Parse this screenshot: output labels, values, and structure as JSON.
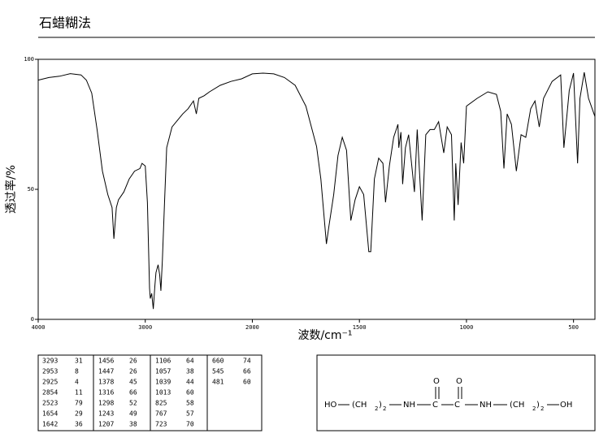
{
  "chart_data": {
    "type": "line",
    "title": "石蜡糊法",
    "x_label": "波数/cm⁻¹",
    "y_label": "透过率/%",
    "xlim": [
      4000,
      400
    ],
    "x_scale_break": 2000,
    "ylim": [
      0,
      100
    ],
    "xticks": [
      4000,
      3000,
      2000,
      1500,
      1000,
      500
    ],
    "yticks": [
      0,
      50,
      100
    ],
    "series": [
      {
        "color": "#000000",
        "x": [
          4000,
          3900,
          3800,
          3700,
          3600,
          3550,
          3500,
          3450,
          3400,
          3350,
          3310,
          3293,
          3270,
          3250,
          3200,
          3150,
          3100,
          3050,
          3030,
          3000,
          2980,
          2960,
          2953,
          2940,
          2925,
          2910,
          2900,
          2880,
          2865,
          2854,
          2840,
          2820,
          2800,
          2750,
          2700,
          2650,
          2600,
          2550,
          2523,
          2500,
          2450,
          2400,
          2300,
          2200,
          2100,
          2000,
          1950,
          1900,
          1850,
          1800,
          1750,
          1700,
          1680,
          1654,
          1642,
          1620,
          1600,
          1580,
          1560,
          1540,
          1520,
          1500,
          1480,
          1456,
          1447,
          1430,
          1410,
          1390,
          1378,
          1360,
          1340,
          1320,
          1316,
          1306,
          1298,
          1285,
          1270,
          1243,
          1230,
          1207,
          1190,
          1170,
          1150,
          1130,
          1106,
          1090,
          1070,
          1057,
          1050,
          1039,
          1025,
          1013,
          1000,
          950,
          900,
          860,
          840,
          825,
          810,
          790,
          767,
          745,
          723,
          700,
          680,
          660,
          640,
          600,
          560,
          545,
          520,
          500,
          481,
          470,
          450,
          430,
          400
        ],
        "values": [
          92,
          93,
          93.5,
          94.5,
          94,
          92,
          87,
          73,
          57,
          48,
          43,
          31,
          43,
          46,
          49,
          54,
          57,
          58,
          60,
          59,
          45,
          12,
          8,
          10,
          4,
          13,
          18,
          21,
          17,
          11,
          23,
          45,
          66,
          74,
          76.5,
          79,
          81,
          84,
          79,
          85,
          86,
          87.5,
          90,
          91.5,
          92.5,
          94.4,
          94.7,
          94.4,
          93,
          90,
          82,
          66.5,
          54,
          29,
          36,
          48,
          63,
          70,
          65,
          38,
          46,
          51,
          48,
          26,
          26,
          54,
          62,
          60,
          45,
          59,
          70,
          75,
          66,
          72,
          52,
          66,
          71,
          49,
          73,
          38,
          71,
          73,
          73,
          76,
          64,
          74,
          71,
          38,
          60,
          44,
          68,
          60,
          82,
          85,
          87.5,
          86.5,
          80,
          58,
          79,
          75,
          57,
          71,
          70,
          81,
          84,
          74,
          85,
          91.5,
          94,
          66,
          88,
          94.7,
          60,
          85,
          95,
          85,
          78
        ]
      }
    ]
  },
  "peak_table": {
    "columns": [
      [
        [
          "3293",
          "31"
        ],
        [
          "2953",
          "8"
        ],
        [
          "2925",
          "4"
        ],
        [
          "2854",
          "11"
        ],
        [
          "2523",
          "79"
        ],
        [
          "1654",
          "29"
        ],
        [
          "1642",
          "36"
        ]
      ],
      [
        [
          "1456",
          "26"
        ],
        [
          "1447",
          "26"
        ],
        [
          "1378",
          "45"
        ],
        [
          "1316",
          "66"
        ],
        [
          "1298",
          "52"
        ],
        [
          "1243",
          "49"
        ],
        [
          "1207",
          "38"
        ]
      ],
      [
        [
          "1106",
          "64"
        ],
        [
          "1057",
          "38"
        ],
        [
          "1039",
          "44"
        ],
        [
          "1013",
          "60"
        ],
        [
          "825",
          "58"
        ],
        [
          "767",
          "57"
        ],
        [
          "723",
          "70"
        ]
      ],
      [
        [
          "660",
          "74"
        ],
        [
          "545",
          "66"
        ],
        [
          "481",
          "60"
        ]
      ]
    ]
  },
  "structure": {
    "texts": [
      "HO",
      "(CH",
      "2",
      ")",
      "2",
      "NH",
      "C",
      "O",
      "C",
      "O",
      "NH",
      "(CH",
      "2",
      ")",
      "2",
      "OH"
    ]
  }
}
